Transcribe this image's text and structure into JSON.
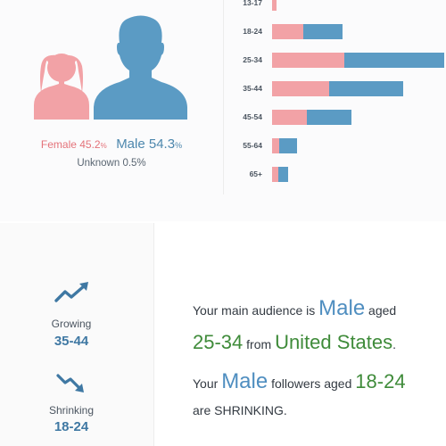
{
  "gender": {
    "female_label": "Female",
    "female_value": "45.2",
    "female_pct_sign": "%",
    "female_share": 45.2,
    "male_label": "Male",
    "male_value": "54.3",
    "male_pct_sign": "%",
    "male_share": 54.3,
    "unknown_text": "Unknown 0.5%",
    "colors": {
      "female": "#f2a2a6",
      "male": "#5b9bc4"
    }
  },
  "age_chart": {
    "type": "bar",
    "stacked": true,
    "categories": [
      "13-17",
      "18-24",
      "25-34",
      "35-44",
      "45-54",
      "55-64",
      "65+"
    ],
    "series": [
      {
        "values": [
          0.6,
          4.6,
          10.5,
          8.3,
          5.0,
          1.0,
          0.9
        ]
      },
      {
        "values": [
          0.0,
          5.7,
          14.6,
          10.8,
          6.5,
          2.7,
          1.4
        ]
      }
    ]
  },
  "trends": {
    "growing_label": "Growing",
    "growing_value": "35-44",
    "growing_icon": "trend-up-icon",
    "shrinking_label": "Shrinking",
    "shrinking_value": "18-24",
    "shrinking_icon": "trend-down-icon"
  },
  "summary": {
    "l1_prefix": "Your main audience is ",
    "l1_gender": "Male",
    "l1_suffix": " aged",
    "l2_age": "25-34",
    "l2_mid": " from ",
    "l2_country": "United States",
    "l2_end": ".",
    "l3_prefix": "Your ",
    "l3_gender": "Male",
    "l3_mid": " followers aged ",
    "l3_age": "18-24",
    "l4_text": "are SHRINKING."
  }
}
